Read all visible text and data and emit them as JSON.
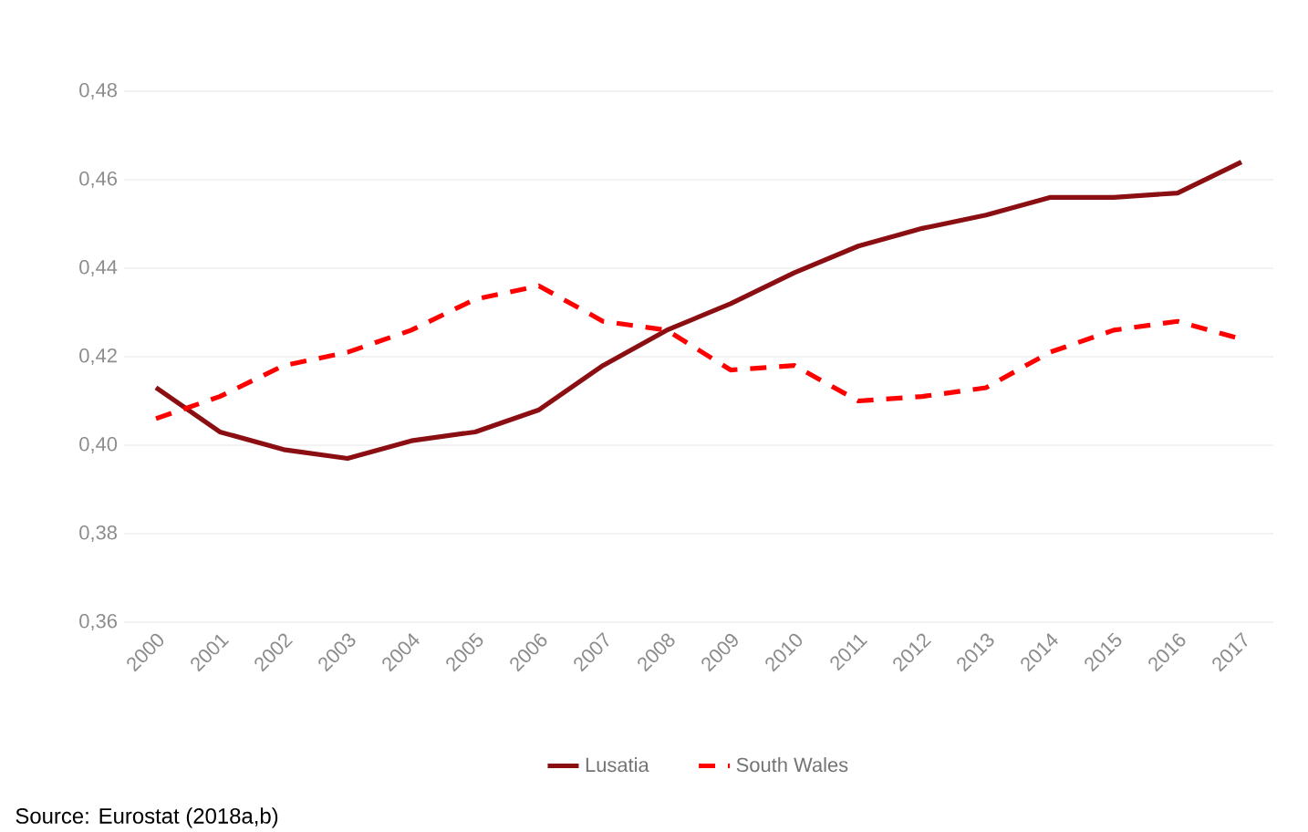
{
  "chart_data": {
    "type": "line",
    "categories": [
      "2000",
      "2001",
      "2002",
      "2003",
      "2004",
      "2005",
      "2006",
      "2007",
      "2008",
      "2009",
      "2010",
      "2011",
      "2012",
      "2013",
      "2014",
      "2015",
      "2016",
      "2017"
    ],
    "series": [
      {
        "name": "Lusatia",
        "color": "#8b0f12",
        "line_style": "solid",
        "values": [
          0.413,
          0.403,
          0.399,
          0.397,
          0.401,
          0.403,
          0.408,
          0.418,
          0.426,
          0.432,
          0.439,
          0.445,
          0.449,
          0.452,
          0.456,
          0.456,
          0.457,
          0.464
        ]
      },
      {
        "name": "South Wales",
        "color": "#ff0000",
        "line_style": "dashed",
        "values": [
          0.406,
          0.411,
          0.418,
          0.421,
          0.426,
          0.433,
          0.436,
          0.428,
          0.426,
          0.417,
          0.418,
          0.41,
          0.411,
          0.413,
          0.421,
          0.426,
          0.428,
          0.424
        ]
      }
    ],
    "ylim": [
      0.36,
      0.48
    ],
    "yticks": [
      {
        "value": 0.36,
        "label": "0,36"
      },
      {
        "value": 0.38,
        "label": "0,38"
      },
      {
        "value": 0.4,
        "label": "0,40"
      },
      {
        "value": 0.42,
        "label": "0,42"
      },
      {
        "value": 0.44,
        "label": "0,44"
      },
      {
        "value": 0.46,
        "label": "0,46"
      },
      {
        "value": 0.48,
        "label": "0,48"
      }
    ],
    "grid": "y",
    "legend": "bottom",
    "marker": "none",
    "annotations": [
      "Source: Eurostat (2018a,b)"
    ]
  }
}
